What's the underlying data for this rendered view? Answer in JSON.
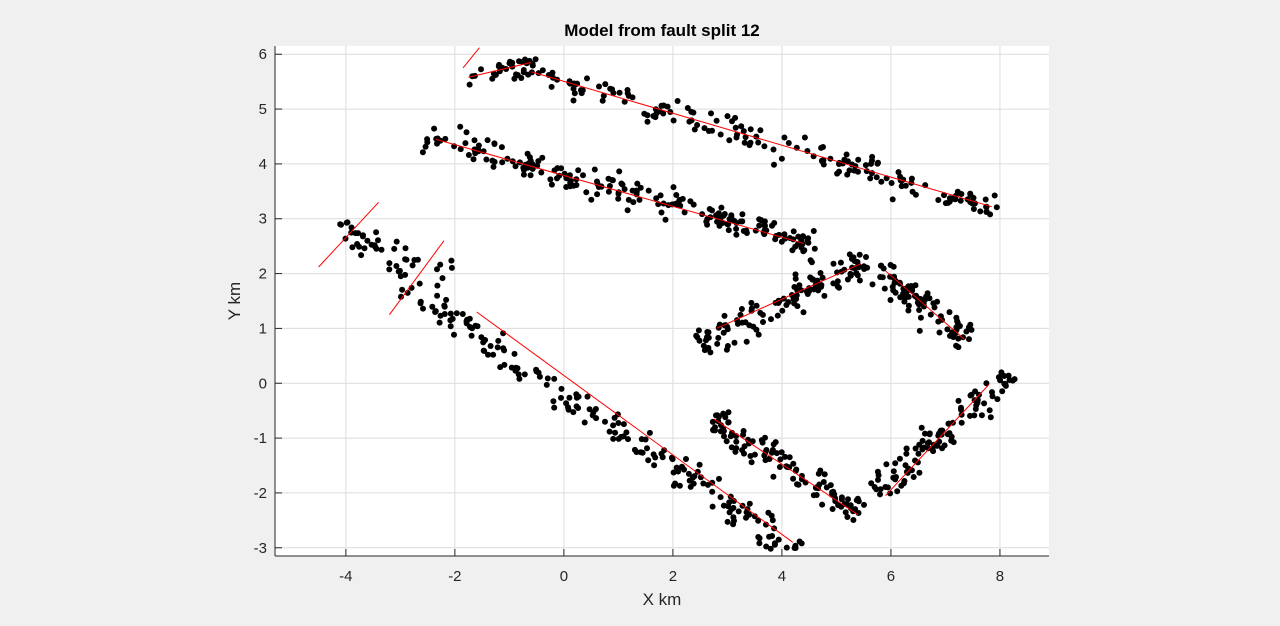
{
  "chart_data": {
    "type": "scatter",
    "title": "Model from fault split 12",
    "xlabel": "X km",
    "ylabel": "Y km",
    "xlim": [
      -5.3,
      8.9
    ],
    "ylim": [
      -3.15,
      6.15
    ],
    "xticks": [
      -4,
      -2,
      0,
      2,
      4,
      6,
      8
    ],
    "yticks": [
      -3,
      -2,
      -1,
      0,
      1,
      2,
      3,
      4,
      5,
      6
    ],
    "grid": true,
    "box": true,
    "colors": {
      "points": "#000000",
      "fault_lines": "#ff0000",
      "background": "#f0f0f0",
      "axes": "#ffffff",
      "grid": "#dcdcdc"
    },
    "fault_segments": [
      {
        "x": [
          -1.75,
          -0.6
        ],
        "y": [
          5.58,
          5.85
        ]
      },
      {
        "x": [
          -0.6,
          7.85
        ],
        "y": [
          5.68,
          3.22
        ]
      },
      {
        "x": [
          -2.35,
          4.4
        ],
        "y": [
          4.45,
          2.55
        ]
      },
      {
        "x": [
          -4.5,
          -3.4
        ],
        "y": [
          2.12,
          3.3
        ]
      },
      {
        "x": [
          -3.2,
          -2.2
        ],
        "y": [
          1.25,
          2.6
        ]
      },
      {
        "x": [
          -1.6,
          4.2
        ],
        "y": [
          1.3,
          -2.9
        ]
      },
      {
        "x": [
          2.75,
          5.4
        ],
        "y": [
          -0.65,
          -2.4
        ]
      },
      {
        "x": [
          2.8,
          5.45
        ],
        "y": [
          1.0,
          2.18
        ]
      },
      {
        "x": [
          5.9,
          7.35
        ],
        "y": [
          2.05,
          0.8
        ]
      },
      {
        "x": [
          5.9,
          7.8
        ],
        "y": [
          -2.05,
          -0.02
        ]
      },
      {
        "x": [
          -1.85,
          -1.55
        ],
        "y": [
          5.75,
          6.12
        ]
      }
    ],
    "point_clusters": [
      {
        "x": [
          -1.75,
          -0.6
        ],
        "y": [
          5.58,
          5.85
        ],
        "n": 22,
        "spread": 0.12
      },
      {
        "x": [
          -0.6,
          7.85
        ],
        "y": [
          5.68,
          3.22
        ],
        "n": 180,
        "spread": 0.16
      },
      {
        "x": [
          -2.35,
          4.4
        ],
        "y": [
          4.45,
          2.55
        ],
        "n": 200,
        "spread": 0.17
      },
      {
        "x": [
          -4.15,
          -2.75
        ],
        "y": [
          2.9,
          2.15
        ],
        "n": 38,
        "spread": 0.18
      },
      {
        "x": [
          -3.0,
          -2.05
        ],
        "y": [
          1.55,
          2.2
        ],
        "n": 12,
        "spread": 0.2
      },
      {
        "x": [
          -2.4,
          4.1
        ],
        "y": [
          1.45,
          -2.95
        ],
        "n": 180,
        "spread": 0.17
      },
      {
        "x": [
          2.75,
          5.4
        ],
        "y": [
          -0.75,
          -2.3
        ],
        "n": 110,
        "spread": 0.2
      },
      {
        "x": [
          2.6,
          5.5
        ],
        "y": [
          0.75,
          2.2
        ],
        "n": 120,
        "spread": 0.18
      },
      {
        "x": [
          5.8,
          7.4
        ],
        "y": [
          2.1,
          0.8
        ],
        "n": 85,
        "spread": 0.17
      },
      {
        "x": [
          5.75,
          8.15
        ],
        "y": [
          -1.95,
          0.1
        ],
        "n": 105,
        "spread": 0.18
      }
    ]
  }
}
